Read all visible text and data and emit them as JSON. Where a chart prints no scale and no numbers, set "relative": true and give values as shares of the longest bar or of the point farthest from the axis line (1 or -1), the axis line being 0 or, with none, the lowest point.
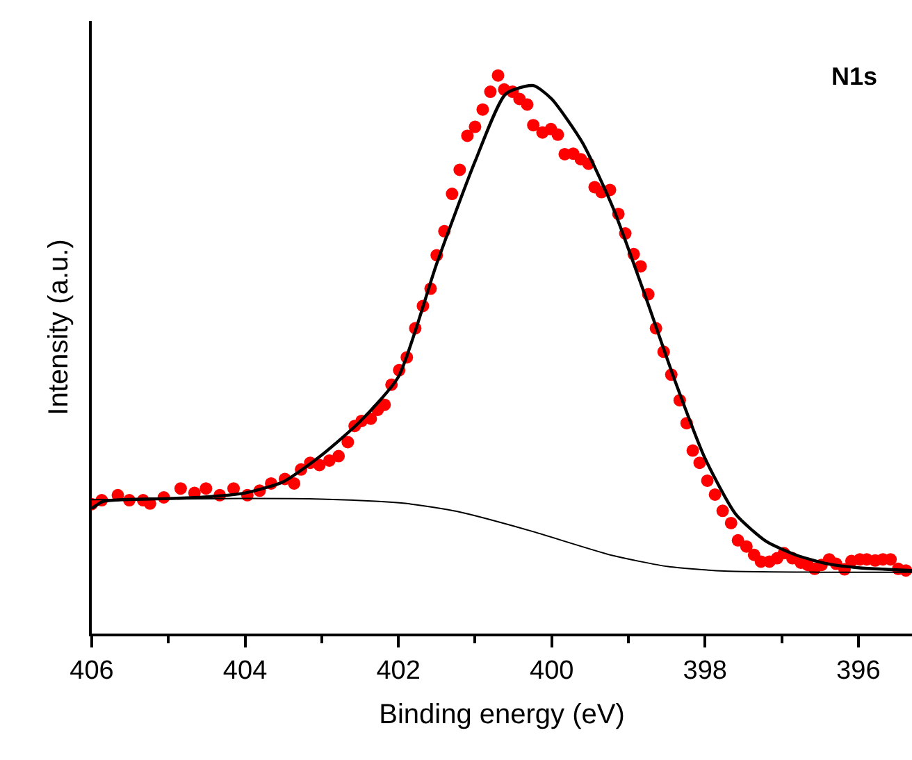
{
  "chart_data": {
    "type": "line",
    "xlabel": "Binding energy (eV)",
    "ylabel": "Intensity (a.u.)",
    "relative": true,
    "annotations": [
      "N1s"
    ],
    "xlim": [
      406,
      395.3
    ],
    "xticks": [
      406,
      404,
      402,
      400,
      398,
      396,
      {
        "value": 405,
        "label": null
      },
      {
        "value": 403,
        "label": null
      },
      {
        "value": 401,
        "label": null
      },
      {
        "value": 399,
        "label": null
      },
      {
        "value": 397,
        "label": null
      }
    ],
    "grid": false,
    "series": [
      {
        "type": "scatter",
        "marker": "circle",
        "color": "#ff0000",
        "x": [
          406.0,
          405.87,
          405.66,
          405.51,
          405.33,
          405.24,
          405.06,
          404.84,
          404.66,
          404.51,
          404.33,
          404.15,
          403.97,
          403.81,
          403.66,
          403.48,
          403.36,
          403.27,
          403.15,
          403.03,
          402.9,
          402.78,
          402.66,
          402.57,
          402.48,
          402.36,
          402.27,
          402.18,
          402.09,
          401.99,
          401.89,
          401.78,
          401.68,
          401.58,
          401.5,
          401.4,
          401.3,
          401.2,
          401.1,
          401.0,
          400.9,
          400.8,
          400.7,
          400.62,
          400.51,
          400.42,
          400.32,
          400.24,
          400.12,
          400.01,
          399.92,
          399.83,
          399.72,
          399.62,
          399.52,
          399.44,
          399.35,
          399.24,
          399.13,
          399.04,
          398.93,
          398.84,
          398.74,
          398.64,
          398.54,
          398.44,
          398.33,
          398.24,
          398.16,
          398.07,
          397.97,
          397.87,
          397.77,
          397.66,
          397.57,
          397.46,
          397.36,
          397.27,
          397.16,
          397.06,
          396.97,
          396.86,
          396.75,
          396.66,
          396.57,
          396.48,
          396.38,
          396.29,
          396.18,
          396.09,
          395.98,
          395.89,
          395.78,
          395.68,
          395.58,
          395.48,
          395.38
        ],
        "values": [
          0.232,
          0.239,
          0.248,
          0.239,
          0.239,
          0.233,
          0.244,
          0.26,
          0.252,
          0.26,
          0.248,
          0.26,
          0.248,
          0.256,
          0.269,
          0.277,
          0.269,
          0.294,
          0.306,
          0.302,
          0.31,
          0.318,
          0.343,
          0.372,
          0.381,
          0.385,
          0.401,
          0.41,
          0.446,
          0.472,
          0.495,
          0.547,
          0.587,
          0.618,
          0.678,
          0.721,
          0.788,
          0.831,
          0.892,
          0.908,
          0.939,
          0.971,
          1.0,
          0.975,
          0.971,
          0.958,
          0.948,
          0.911,
          0.898,
          0.904,
          0.894,
          0.859,
          0.86,
          0.85,
          0.842,
          0.8,
          0.791,
          0.795,
          0.752,
          0.717,
          0.68,
          0.658,
          0.608,
          0.547,
          0.505,
          0.464,
          0.418,
          0.377,
          0.328,
          0.306,
          0.274,
          0.249,
          0.22,
          0.198,
          0.167,
          0.156,
          0.141,
          0.129,
          0.129,
          0.135,
          0.144,
          0.135,
          0.127,
          0.123,
          0.116,
          0.123,
          0.133,
          0.125,
          0.115,
          0.13,
          0.133,
          0.133,
          0.131,
          0.133,
          0.133,
          0.116,
          0.113
        ]
      },
      {
        "color": "#000000",
        "line_style": "solid",
        "x": [
          406.0,
          405.85,
          405.6,
          405.0,
          404.5,
          404.0,
          403.5,
          403.0,
          402.5,
          402.0,
          401.5,
          401.0,
          400.6,
          400.24,
          400.0,
          399.6,
          399.2,
          398.8,
          398.4,
          398.0,
          397.6,
          397.2,
          396.8,
          396.4,
          396.0,
          395.3
        ],
        "values": [
          0.224,
          0.237,
          0.24,
          0.242,
          0.245,
          0.252,
          0.272,
          0.32,
          0.38,
          0.46,
          0.663,
          0.846,
          0.967,
          0.982,
          0.958,
          0.88,
          0.763,
          0.613,
          0.456,
          0.314,
          0.214,
          0.165,
          0.14,
          0.125,
          0.118,
          0.113
        ]
      },
      {
        "color": "#000000",
        "line_style": "solid",
        "x": [
          406.0,
          404.0,
          403.0,
          402.3,
          401.83,
          401.24,
          400.3,
          399.21,
          398.48,
          397.75,
          396.5,
          395.3
        ],
        "values": [
          0.24,
          0.242,
          0.241,
          0.237,
          0.232,
          0.219,
          0.185,
          0.14,
          0.12,
          0.112,
          0.11,
          0.11
        ]
      }
    ]
  }
}
